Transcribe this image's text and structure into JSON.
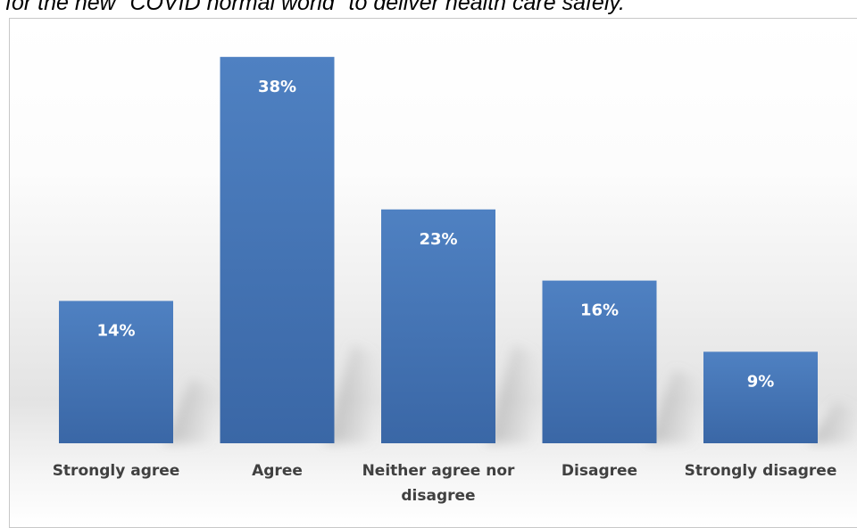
{
  "caption": "for the new \"COVID normal world\" to deliver health care safely.",
  "chart_data": {
    "type": "bar",
    "categories": [
      "Strongly agree",
      "Agree",
      "Neither agree nor disagree",
      "Disagree",
      "Strongly disagree"
    ],
    "category_lines": [
      [
        "Strongly agree"
      ],
      [
        "Agree"
      ],
      [
        "Neither agree nor",
        "disagree"
      ],
      [
        "Disagree"
      ],
      [
        "Strongly disagree"
      ]
    ],
    "values": [
      14,
      38,
      23,
      16,
      9
    ],
    "data_labels": [
      "14%",
      "38%",
      "23%",
      "16%",
      "9%"
    ],
    "unit": "%",
    "ylim": [
      0,
      40
    ],
    "grid": false,
    "legend": "none",
    "bar_color": "#4472c4"
  }
}
